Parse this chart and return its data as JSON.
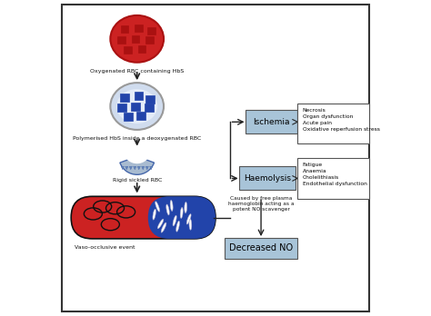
{
  "bg_color": "#ffffff",
  "border_color": "#333333",
  "red_cell_color": "#cc2222",
  "red_cell_dark": "#aa1111",
  "blue_cell_color": "#2244aa",
  "light_blue_cell": "#aabbdd",
  "box_fill_blue": "#a8c4d8",
  "box_outline": "#555555",
  "text_color": "#111111",
  "arrow_color": "#222222",
  "labels": {
    "oxygenated": "Oxygenated RBC containing HbS",
    "polymerised": "Polymerised HbS inside a deoxygenated RBC",
    "rigid": "Rigid sickled RBC",
    "vaso": "Vaso-occlusive event",
    "ischemia": "Ischemia",
    "haemolysis": "Haemolysis",
    "decreased_no": "Decreased NO",
    "caused_by": "Caused by free plasma\nhaemoglobin acting as a\npotent NO scavenger",
    "ischemia_effects": "Necrosis\nOrgan dysfunction\nAcute pain\nOxidative reperfusion stress",
    "haemolysis_effects": "Fatigue\nAnaemia\nCholelithiasis\nEndothelial dysfunction"
  }
}
